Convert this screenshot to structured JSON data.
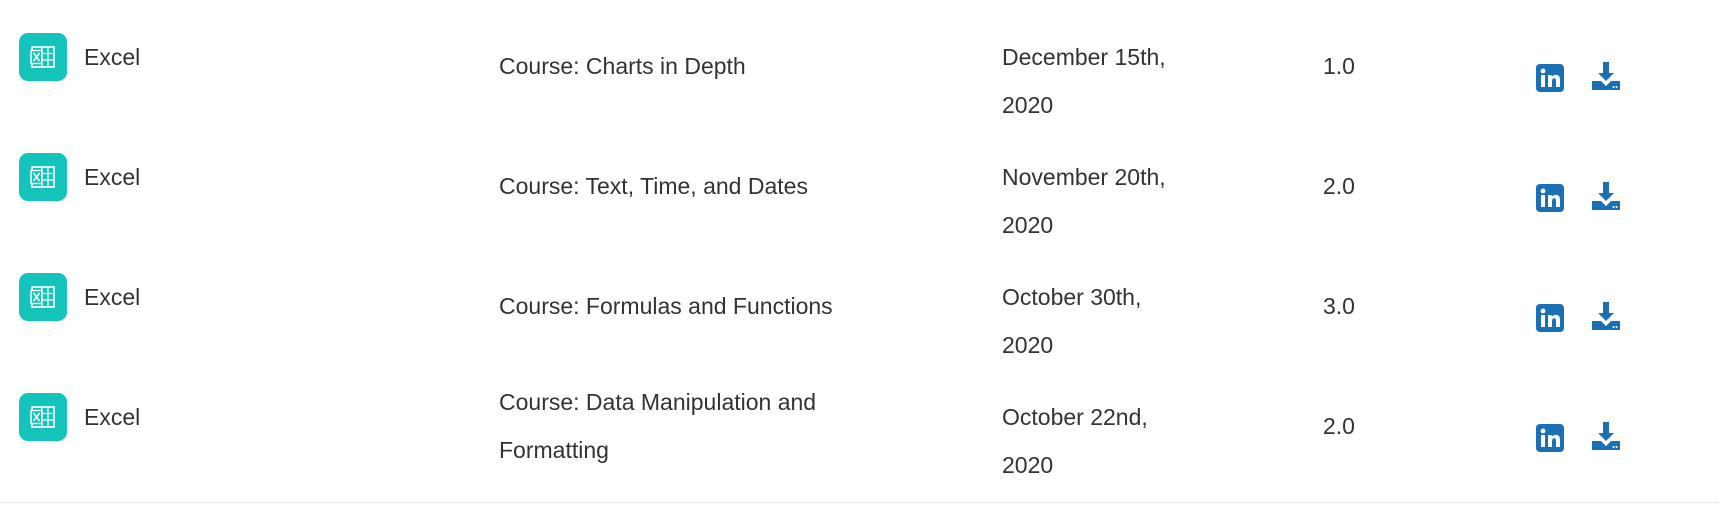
{
  "colors": {
    "app_icon_bg": "#14c3b9",
    "action_blue": "#1a6fb5",
    "text": "#333333"
  },
  "rows": [
    {
      "app_icon": "excel-icon",
      "app_name": "Excel",
      "course": "Course: Charts in Depth",
      "date_line1": "December 15th,",
      "date_line2": "2020",
      "credits": "1.0",
      "actions": [
        "linkedin-icon",
        "download-icon"
      ]
    },
    {
      "app_icon": "excel-icon",
      "app_name": "Excel",
      "course": "Course: Text, Time, and Dates",
      "date_line1": "November 20th,",
      "date_line2": "2020",
      "credits": "2.0",
      "actions": [
        "linkedin-icon",
        "download-icon"
      ]
    },
    {
      "app_icon": "excel-icon",
      "app_name": "Excel",
      "course": "Course: Formulas and Functions",
      "date_line1": "October 30th,",
      "date_line2": "2020",
      "credits": "3.0",
      "actions": [
        "linkedin-icon",
        "download-icon"
      ]
    },
    {
      "app_icon": "excel-icon",
      "app_name": "Excel",
      "course": "Course: Data Manipulation and Formatting",
      "date_line1": "October 22nd,",
      "date_line2": "2020",
      "credits": "2.0",
      "actions": [
        "linkedin-icon",
        "download-icon"
      ]
    }
  ]
}
